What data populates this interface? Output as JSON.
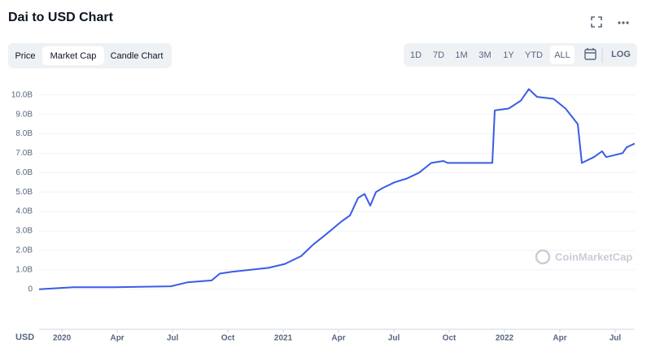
{
  "ui": {
    "tabs": [
      "Price",
      "Market Cap",
      "Candle Chart"
    ],
    "selected_tab": 1,
    "ranges": [
      "1D",
      "7D",
      "1M",
      "3M",
      "1Y",
      "YTD",
      "ALL"
    ],
    "selected_range": 6,
    "log_button": "LOG",
    "currency": "USD",
    "watermark": "CoinMarketCap"
  },
  "chart_data": {
    "type": "line",
    "title": "Dai to USD Chart",
    "x": [
      -1.24,
      0.62,
      2.82,
      5.91,
      6.79,
      8.12,
      8.56,
      9.22,
      11.21,
      12.09,
      12.97,
      13.63,
      14.29,
      15.18,
      15.62,
      16.06,
      16.41,
      16.72,
      17.03,
      17.38,
      18.04,
      18.71,
      19.37,
      20.03,
      20.69,
      20.91,
      23.34,
      23.47,
      24.22,
      24.88,
      25.32,
      25.76,
      26.65,
      27.31,
      27.97,
      28.19,
      28.85,
      29.29,
      29.51,
      30.4,
      30.62,
      31.06
    ],
    "series": [
      {
        "color": "#3a5ce6",
        "values": [
          0,
          0.1,
          0.1,
          0.15,
          0.35,
          0.45,
          0.8,
          0.9,
          1.1,
          1.3,
          1.7,
          2.3,
          2.8,
          3.5,
          3.8,
          4.7,
          4.9,
          4.3,
          5.0,
          5.2,
          5.5,
          5.7,
          6.0,
          6.5,
          6.6,
          6.5,
          6.5,
          9.2,
          9.3,
          9.7,
          10.3,
          9.9,
          9.8,
          9.3,
          8.5,
          6.5,
          6.8,
          7.1,
          6.8,
          7.0,
          7.3,
          7.5
        ]
      }
    ],
    "xlim": [
      -1.24,
      31.06
    ],
    "xticks": [
      {
        "value": 0,
        "label": "2020"
      },
      {
        "value": 3,
        "label": "Apr"
      },
      {
        "value": 6,
        "label": "Jul"
      },
      {
        "value": 9,
        "label": "Oct"
      },
      {
        "value": 12,
        "label": "2021"
      },
      {
        "value": 15,
        "label": "Apr"
      },
      {
        "value": 18,
        "label": "Jul"
      },
      {
        "value": 21,
        "label": "Oct"
      },
      {
        "value": 24,
        "label": "2022"
      },
      {
        "value": 27,
        "label": "Apr"
      },
      {
        "value": 30,
        "label": "Jul"
      }
    ],
    "ylim": [
      -0.6,
      10.7
    ],
    "yticks": [
      0,
      {
        "value": 1,
        "label": "1.0B"
      },
      {
        "value": 2,
        "label": "2.0B"
      },
      {
        "value": 3,
        "label": "3.0B"
      },
      {
        "value": 4,
        "label": "4.0B"
      },
      {
        "value": 5,
        "label": "5.0B"
      },
      {
        "value": 6,
        "label": "6.0B"
      },
      {
        "value": 7,
        "label": "7.0B"
      },
      {
        "value": 8,
        "label": "8.0B"
      },
      {
        "value": 9,
        "label": "9.0B"
      },
      {
        "value": 10,
        "label": "10.0B"
      }
    ],
    "grid": true
  }
}
